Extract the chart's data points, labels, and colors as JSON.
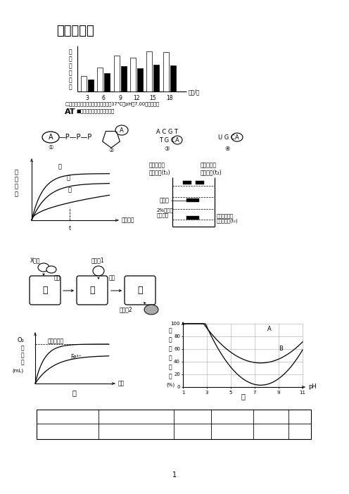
{
  "title": "课时作业七",
  "page_num": "1",
  "bar_white": [
    0.35,
    0.55,
    0.82,
    0.78,
    0.92,
    0.9
  ],
  "bar_black": [
    0.28,
    0.42,
    0.58,
    0.54,
    0.62,
    0.6
  ],
  "bar_xticks": [
    "3",
    "6",
    "9",
    "12",
    "15",
    "18"
  ],
  "bar_xlabel": "时间/分",
  "bar_ylabel_chars": [
    "还",
    "原",
    "糖",
    "生",
    "成",
    "量"
  ],
  "bar_legend1": "□表示一定量淀粉液，一定量唾液，37℃，pH为7.00的实验结果",
  "bar_legend2": "■表示改变某一因素后的结果",
  "bg_color": "#ffffff",
  "yticks_ph": [
    0,
    20,
    40,
    60,
    80,
    100
  ],
  "xticks_ph": [
    1,
    3,
    5,
    7,
    9,
    11
  ]
}
